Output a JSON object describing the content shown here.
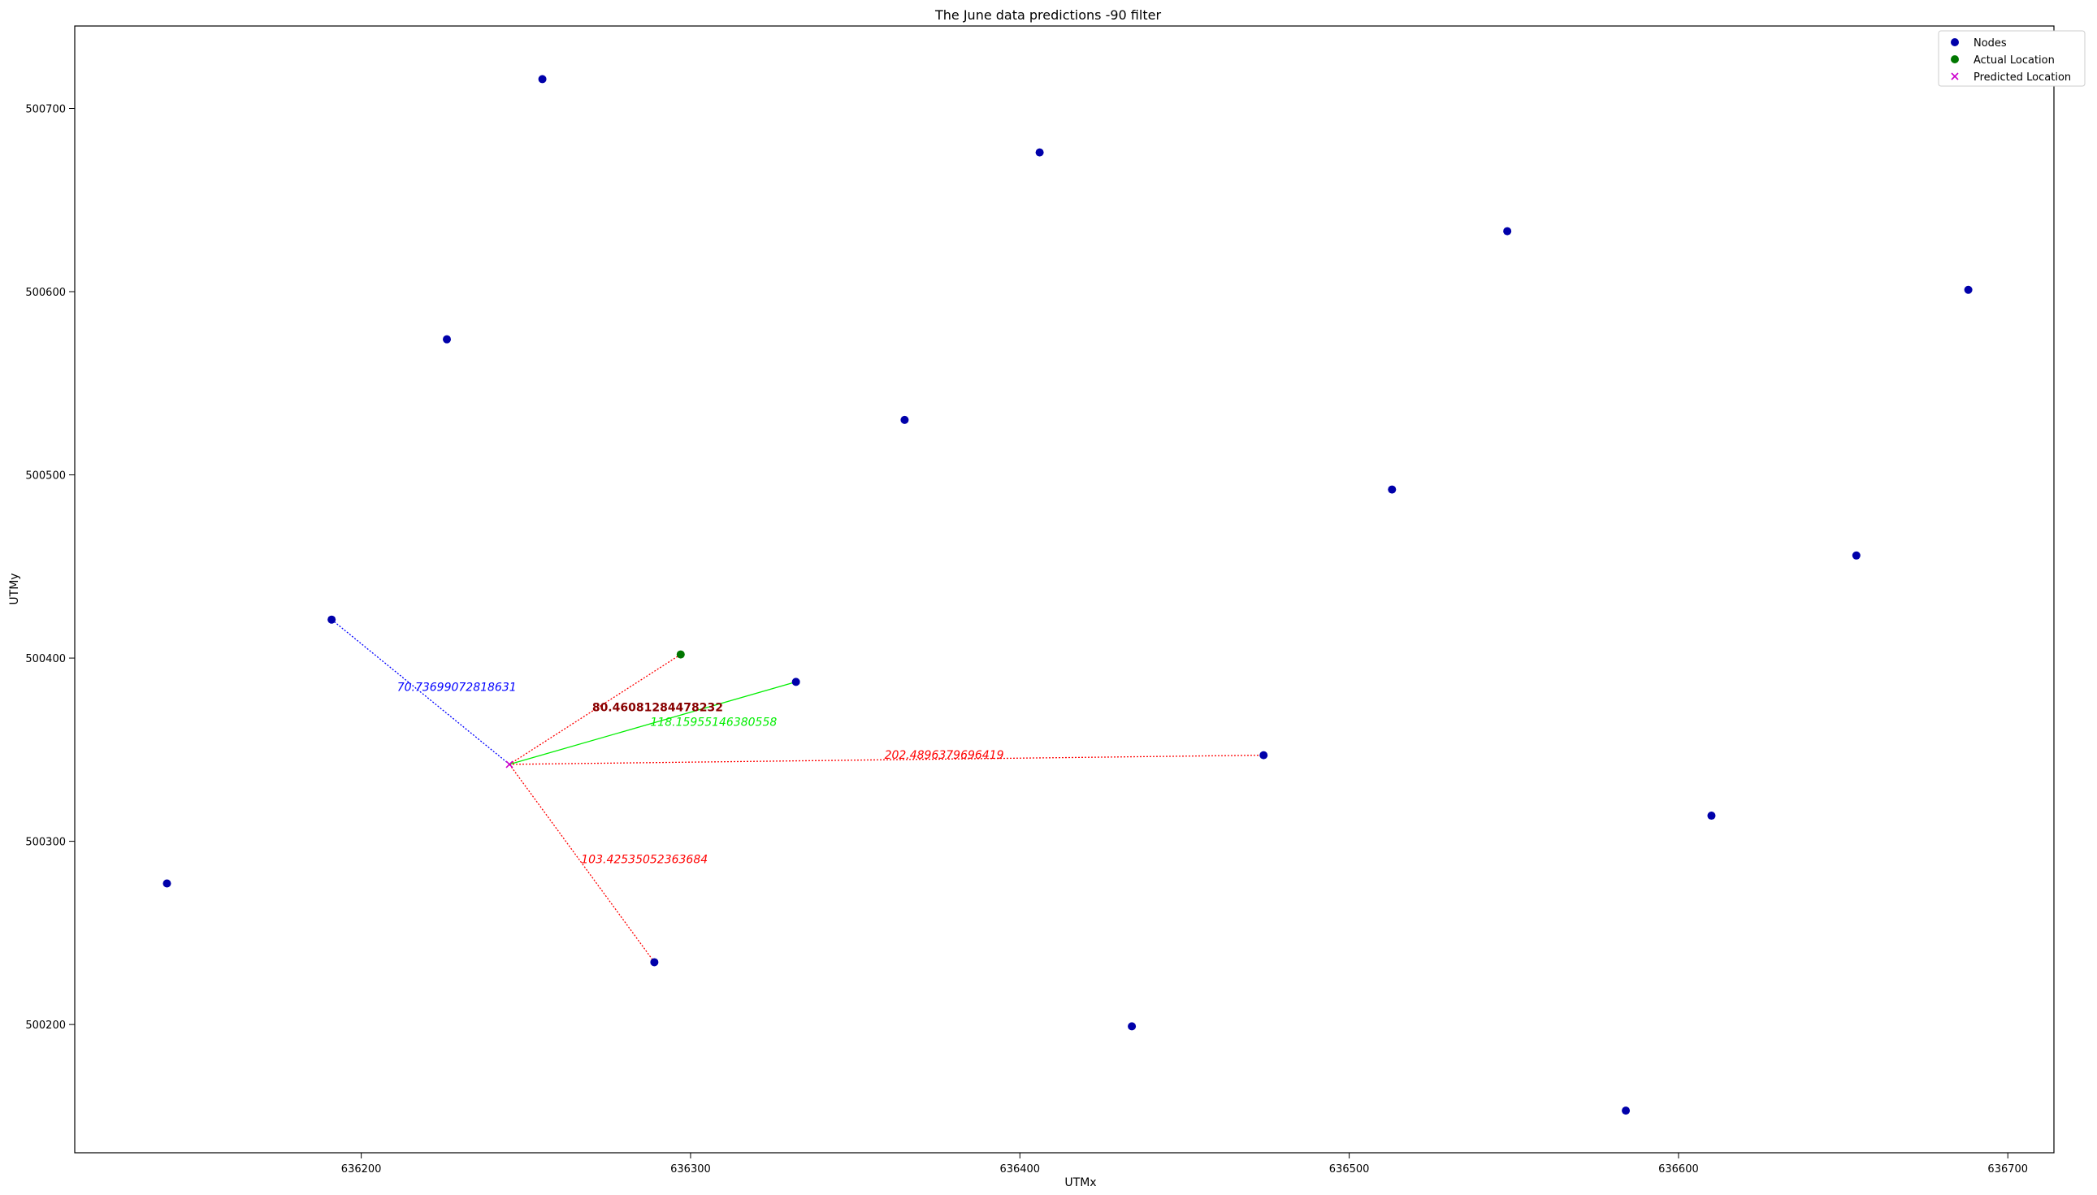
{
  "chart_data": {
    "type": "scatter",
    "title": "The June data predictions -90 filter",
    "xlabel": "UTMx",
    "ylabel": "UTMy",
    "xlim": [
      636113,
      636714
    ],
    "ylim": [
      500130,
      500745
    ],
    "xticks": [
      636200,
      636300,
      636400,
      636500,
      636600,
      636700
    ],
    "yticks": [
      500200,
      500300,
      500400,
      500500,
      500600,
      500700
    ],
    "legend": {
      "placement": "top-right",
      "entries": [
        {
          "label": "Nodes",
          "marker": "circle",
          "color": "#0000aa"
        },
        {
          "label": "Actual Location",
          "marker": "circle",
          "color": "#007700"
        },
        {
          "label": "Predicted Location",
          "marker": "x",
          "color": "#cc00cc"
        }
      ]
    },
    "series": [
      {
        "name": "Nodes",
        "color": "#0000aa",
        "points": [
          [
            636255,
            500716
          ],
          [
            636226,
            500574
          ],
          [
            636191,
            500421
          ],
          [
            636141,
            500277
          ],
          [
            636406,
            500676
          ],
          [
            636365,
            500530
          ],
          [
            636332,
            500387
          ],
          [
            636289,
            500234
          ],
          [
            636434,
            500199
          ],
          [
            636474,
            500347
          ],
          [
            636548,
            500633
          ],
          [
            636513,
            500492
          ],
          [
            636584,
            500153
          ],
          [
            636610,
            500314
          ],
          [
            636654,
            500456
          ],
          [
            636688,
            500601
          ]
        ]
      },
      {
        "name": "Actual Location",
        "color": "#007700",
        "points": [
          [
            636297,
            500402
          ]
        ]
      },
      {
        "name": "Predicted Location",
        "color": "#cc00cc",
        "points": [
          [
            636245,
            500342
          ]
        ]
      }
    ],
    "connections": [
      {
        "from": [
          636245,
          500342
        ],
        "to": [
          636191,
          500421
        ],
        "color": "#0000ff",
        "style": "dotted",
        "label": "70.73699072818631",
        "label_at": [
          636229,
          500382
        ],
        "bold": false
      },
      {
        "from": [
          636245,
          500342
        ],
        "to": [
          636297,
          500402
        ],
        "color": "#ff0000",
        "style": "dotted",
        "label": "80.46081284478232",
        "label_at": [
          636290,
          500371
        ],
        "bold": true
      },
      {
        "from": [
          636245,
          500342
        ],
        "to": [
          636332,
          500387
        ],
        "color": "#00ee00",
        "style": "solid",
        "label": "118.15955146380558",
        "label_at": [
          636307,
          500363
        ],
        "bold": false
      },
      {
        "from": [
          636245,
          500342
        ],
        "to": [
          636474,
          500347
        ],
        "color": "#ff0000",
        "style": "dotted",
        "label": "202.4896379696419",
        "label_at": [
          636377,
          500345
        ],
        "bold": false
      },
      {
        "from": [
          636245,
          500342
        ],
        "to": [
          636289,
          500234
        ],
        "color": "#ff0000",
        "style": "dotted",
        "label": "103.42535052363684",
        "label_at": [
          636286,
          500288
        ],
        "bold": false
      }
    ]
  }
}
